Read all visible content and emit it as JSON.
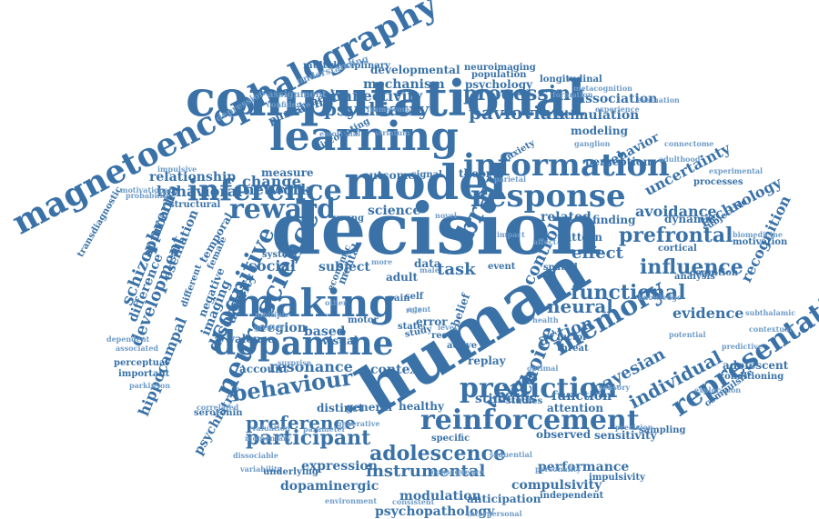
{
  "colors": {
    "primary": "#3a72a8",
    "light": "#6f9cc8"
  },
  "words": [
    "decision",
    "human",
    "computational",
    "model",
    "learning",
    "making",
    "dopamine",
    "neuroscience",
    "magnetoencephalography",
    "information",
    "inference",
    "response",
    "reward",
    "reinforcement",
    "prediction",
    "representation",
    "memory",
    "brain",
    "processing",
    "cognitive",
    "behaviour",
    "adolescence",
    "preference",
    "participant",
    "functional",
    "prefrontal",
    "influence",
    "psychiatry",
    "pavlovian",
    "choice",
    "schizophrenia",
    "development",
    "network",
    "neural",
    "bayesian",
    "individual",
    "value",
    "behavioral",
    "effect",
    "control",
    "action",
    "evidence",
    "uncertainty",
    "avoidance",
    "technology",
    "recognition",
    "behavior",
    "social",
    "relationship",
    "connectivity",
    "magnetic",
    "punishment",
    "instrumental",
    "expression",
    "dopaminergic",
    "resonance",
    "hippocampal",
    "disorder",
    "modulation",
    "psychopathology",
    "performance",
    "compulsivity",
    "developmental",
    "mechanism",
    "psychology",
    "population",
    "longitudinal",
    "neuroimaging",
    "multidisciplinary",
    "metacognition",
    "framework",
    "emotional",
    "striatum",
    "understanding",
    "assignment",
    "confidence",
    "depression",
    "discounting",
    "outcome",
    "signal",
    "theory",
    "anxiety",
    "parietal",
    "change",
    "measure",
    "structural",
    "impulsive",
    "motivational",
    "probability",
    "approach",
    "difference",
    "oscillation",
    "imaging",
    "temporal",
    "negative",
    "different",
    "female",
    "activity",
    "system",
    "subject",
    "economic",
    "mental",
    "adult",
    "task",
    "data",
    "young",
    "science",
    "related",
    "finding",
    "dynamic",
    "association",
    "stimulation",
    "modeling",
    "perception",
    "experience",
    "evaluation",
    "formation",
    "connectome",
    "ganglion",
    "adulthood",
    "experimental",
    "processes",
    "subjective",
    "motivation",
    "cognition",
    "analysis",
    "knowledge",
    "potential",
    "predictive",
    "adolescent",
    "conditioning",
    "sampling",
    "precision",
    "sensory",
    "function",
    "attention",
    "stimulus",
    "studies",
    "observed",
    "sensitivity",
    "specific",
    "consequence",
    "sequential",
    "personality",
    "impulsivity",
    "anticipation",
    "independent",
    "interpersonal",
    "consistent",
    "environment",
    "general",
    "healthy",
    "distinct",
    "generative",
    "parameter",
    "valuation",
    "momentary",
    "dissociable",
    "variability",
    "underlying",
    "psychiatric",
    "serotonin",
    "correlated",
    "perceptual",
    "important",
    "parkinson",
    "associated",
    "dependent",
    "region",
    "based",
    "account",
    "context",
    "replay",
    "belief",
    "error",
    "result",
    "study",
    "state",
    "active",
    "level",
    "visual",
    "pain",
    "self",
    "role",
    "motor",
    "other",
    "multiple",
    "greater",
    "surprise",
    "valence",
    "pattern",
    "factor",
    "threat",
    "health",
    "spatial",
    "cortical",
    "subthalamic",
    "contextual",
    "exploration",
    "compulsive",
    "biomedicine",
    "transdiagnostic",
    "affect",
    "impact",
    "optimal",
    "novel",
    "agent",
    "event",
    "male",
    "more"
  ]
}
